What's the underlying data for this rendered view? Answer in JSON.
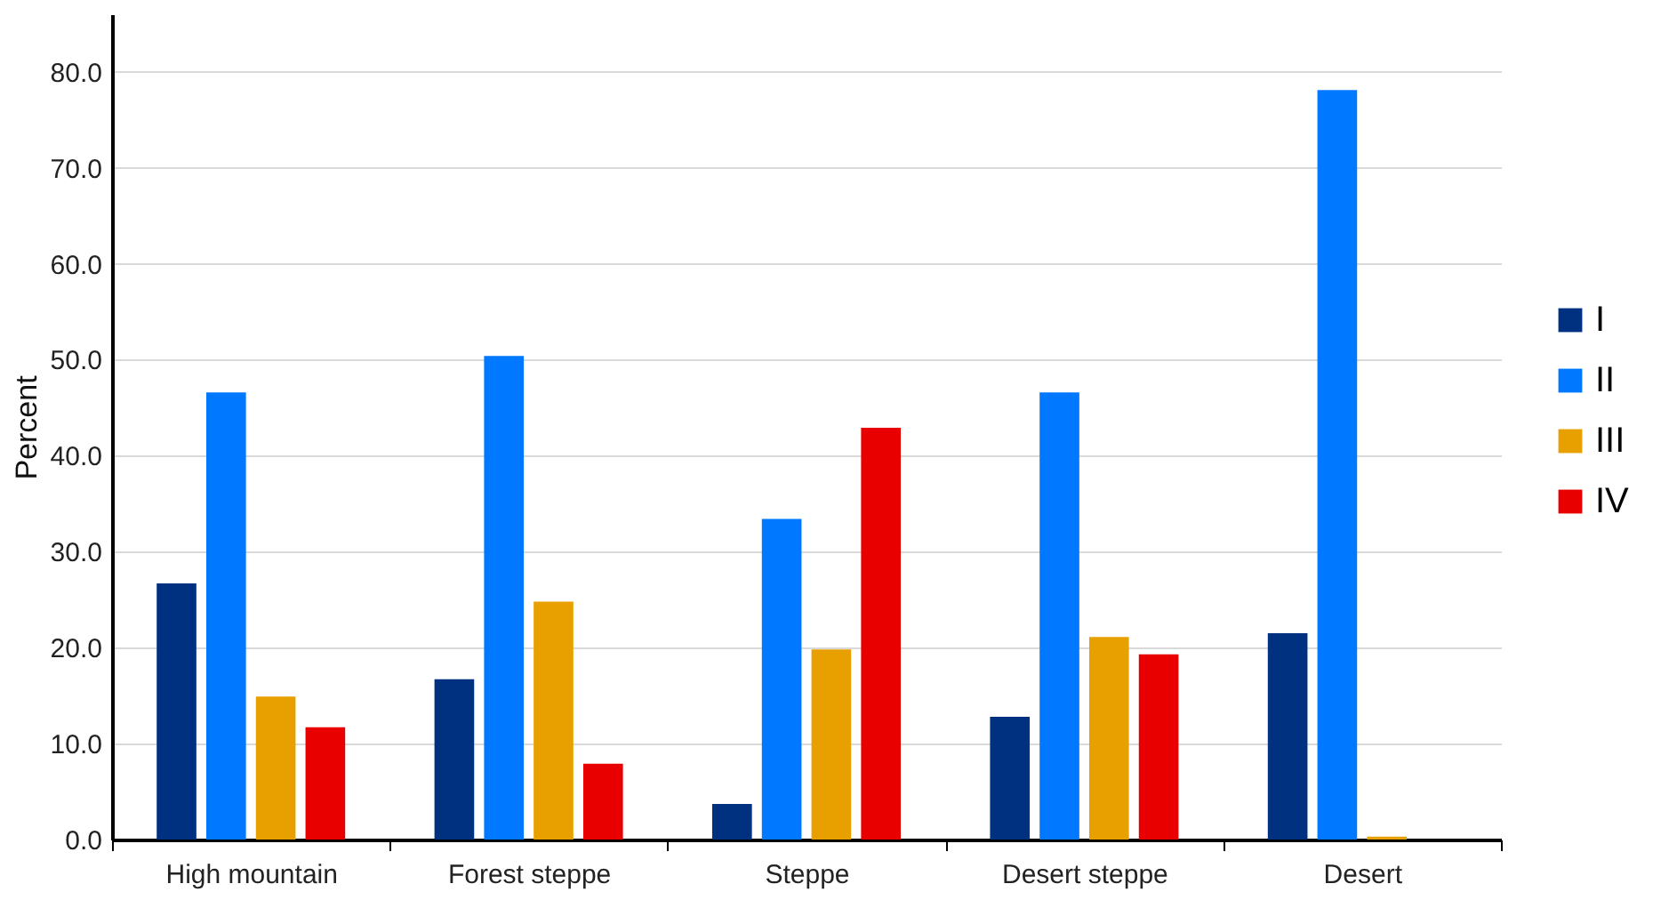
{
  "chart_data": {
    "type": "bar",
    "ylabel": "Percent",
    "categories": [
      "High mountain",
      "Forest steppe",
      "Steppe",
      "Desert steppe",
      "Desert"
    ],
    "series": [
      {
        "name": "I",
        "color": "#003080",
        "values": [
          26.7,
          16.7,
          3.7,
          12.8,
          21.5
        ]
      },
      {
        "name": "II",
        "color": "#0078ff",
        "values": [
          46.6,
          50.4,
          33.4,
          46.6,
          78.1
        ]
      },
      {
        "name": "III",
        "color": "#e8a000",
        "values": [
          14.9,
          24.8,
          19.8,
          21.1,
          0.3
        ]
      },
      {
        "name": "IV",
        "color": "#e80000",
        "values": [
          11.7,
          7.9,
          42.9,
          19.3,
          0
        ]
      }
    ],
    "ylim": [
      0,
      86
    ],
    "yticks": [
      {
        "value": 0,
        "label": "0.0"
      },
      {
        "value": 10,
        "label": "10.0"
      },
      {
        "value": 20,
        "label": "20.0"
      },
      {
        "value": 30,
        "label": "30.0"
      },
      {
        "value": 40,
        "label": "40.0"
      },
      {
        "value": 50,
        "label": "50.0"
      },
      {
        "value": 60,
        "label": "60.0"
      },
      {
        "value": 70,
        "label": "70.0"
      },
      {
        "value": 80,
        "label": "80.0"
      }
    ],
    "grid": "y",
    "legend": "right"
  }
}
